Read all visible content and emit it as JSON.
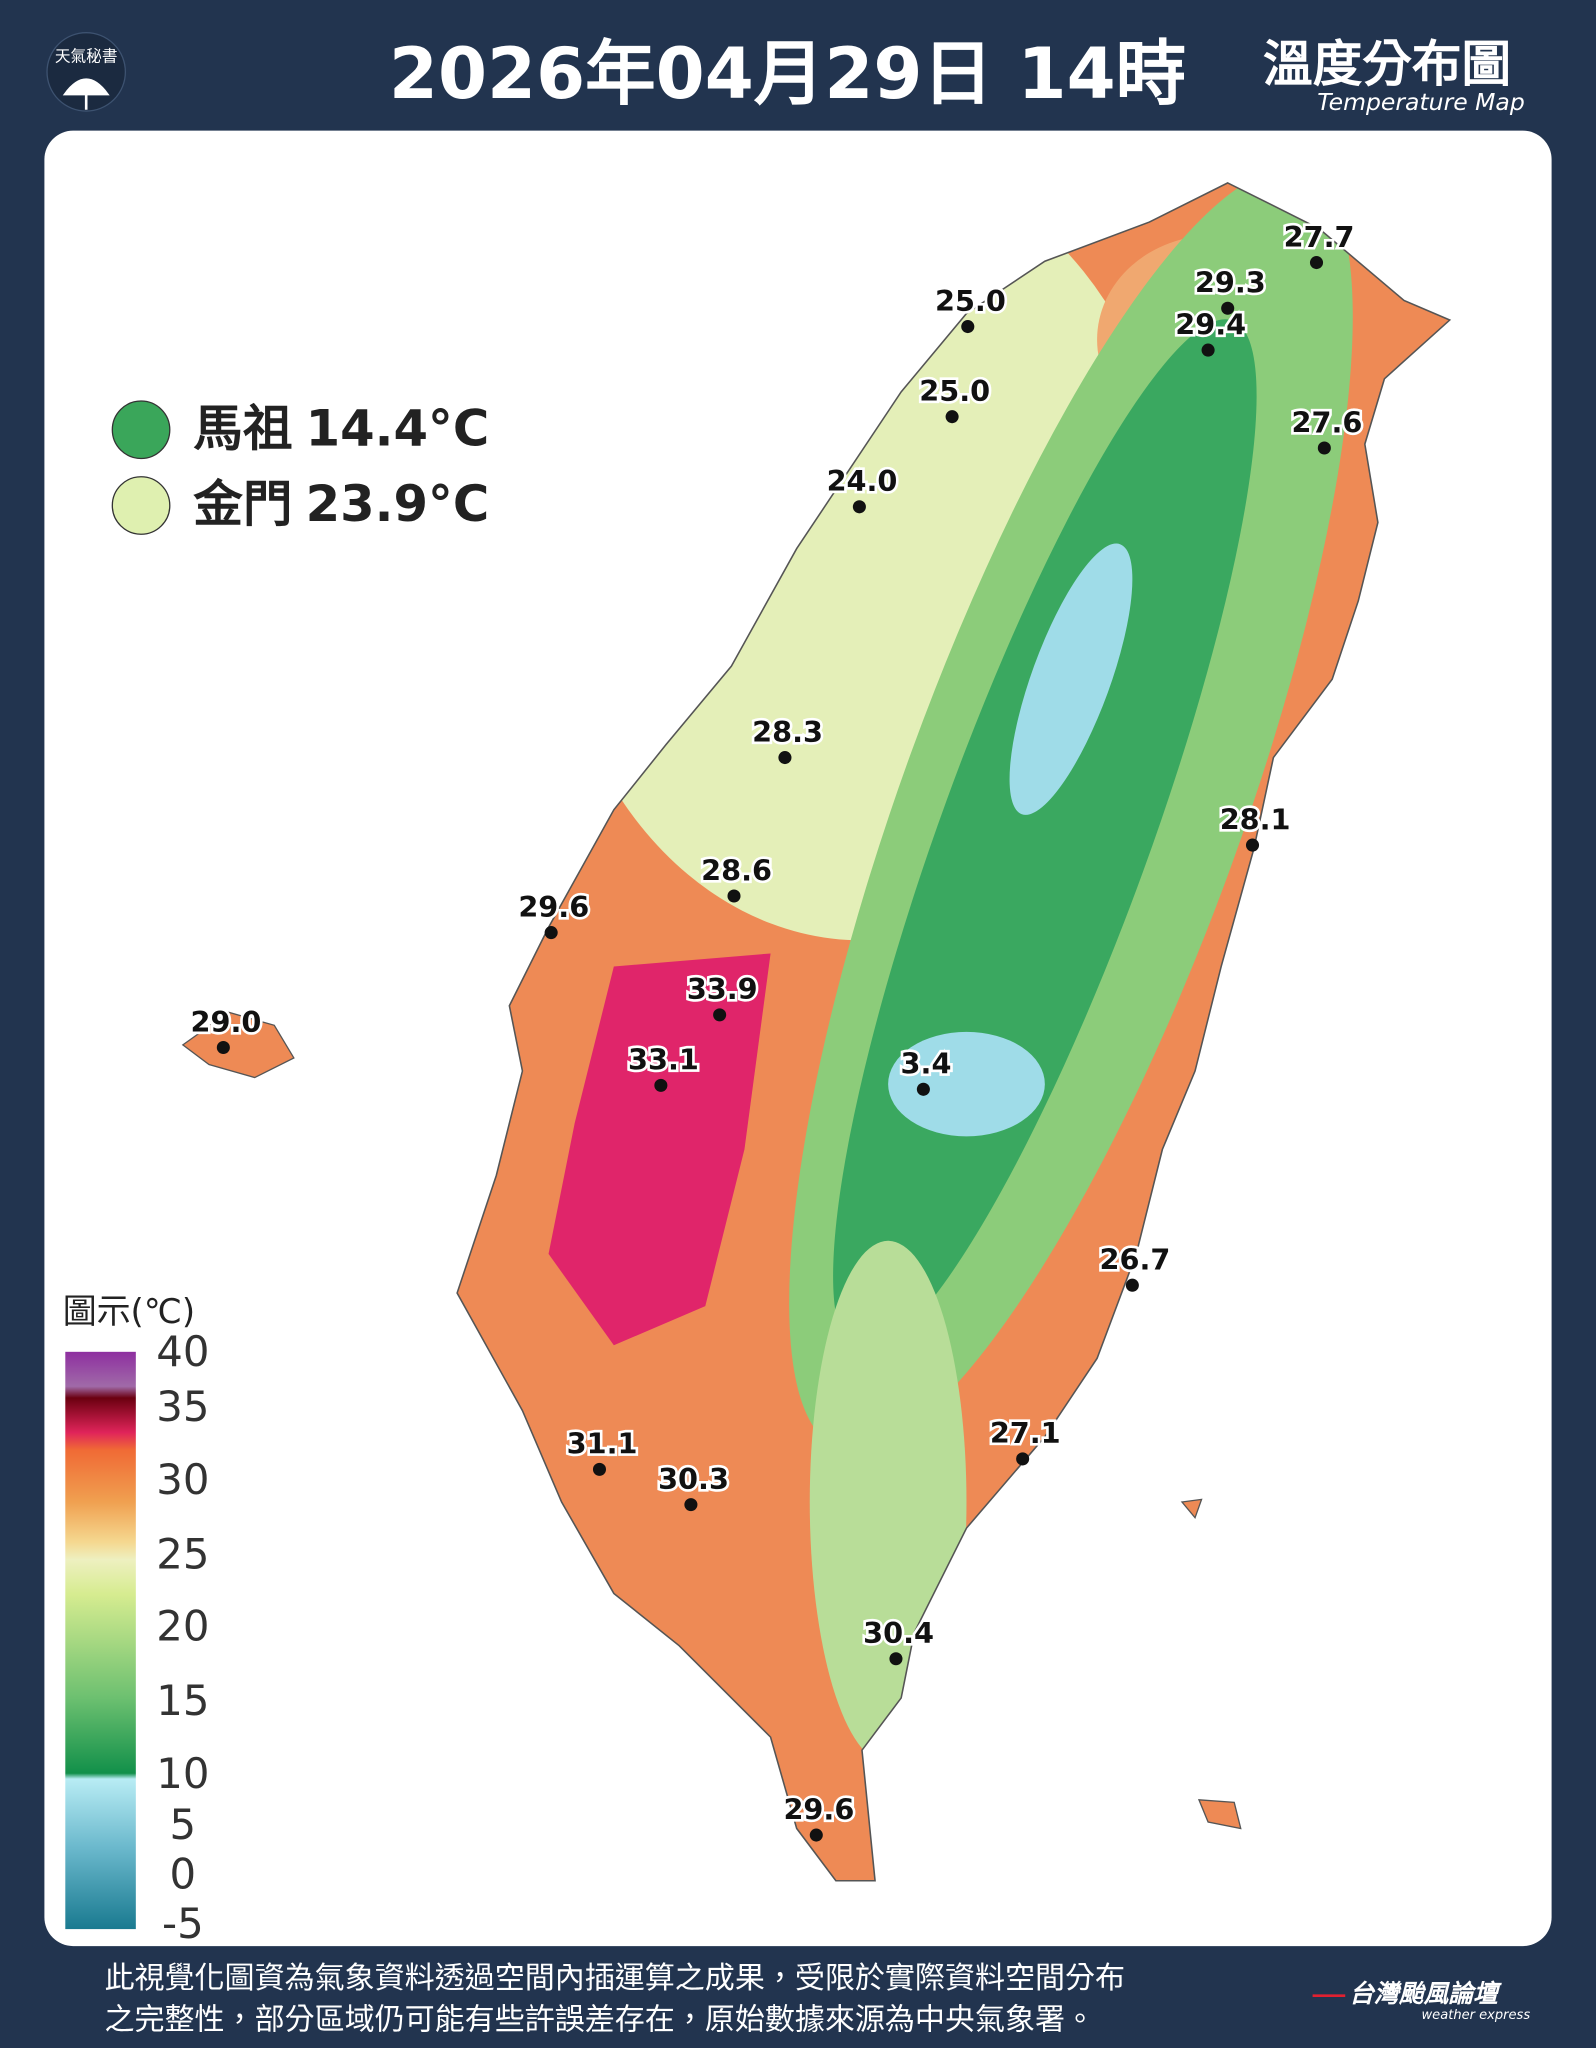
{
  "header": {
    "logo": "天氣秘書",
    "title": "2026年04月29日 14時",
    "map_title": "溫度分布圖",
    "map_subtitle": "Temperature Map"
  },
  "islands": [
    {
      "name": "馬祖",
      "value": "14.4°C"
    },
    {
      "name": "金門",
      "value": "23.9°C"
    }
  ],
  "stations": [
    "27.7",
    "29.3",
    "29.4",
    "25.0",
    "25.0",
    "27.6",
    "24.0",
    "28.3",
    "28.1",
    "28.6",
    "29.6",
    "33.9",
    "29.0",
    "33.1",
    "3.4",
    "26.7",
    "27.1",
    "31.1",
    "30.3",
    "30.4",
    "29.6"
  ],
  "legend": {
    "title": "圖示(℃)",
    "ticks": [
      40,
      35,
      30,
      25,
      20,
      15,
      10,
      5,
      0,
      -5
    ]
  },
  "footer": {
    "lines": [
      "此視覺化圖資為氣象資料透過空間內插運算之成果，受限於實際資料空間分布",
      "之完整性，部分區域仍可能有些許誤差存在，原始數據來源為中央氣象署。"
    ],
    "brand": "台灣颱風論壇",
    "brand_sub": "weather express"
  }
}
